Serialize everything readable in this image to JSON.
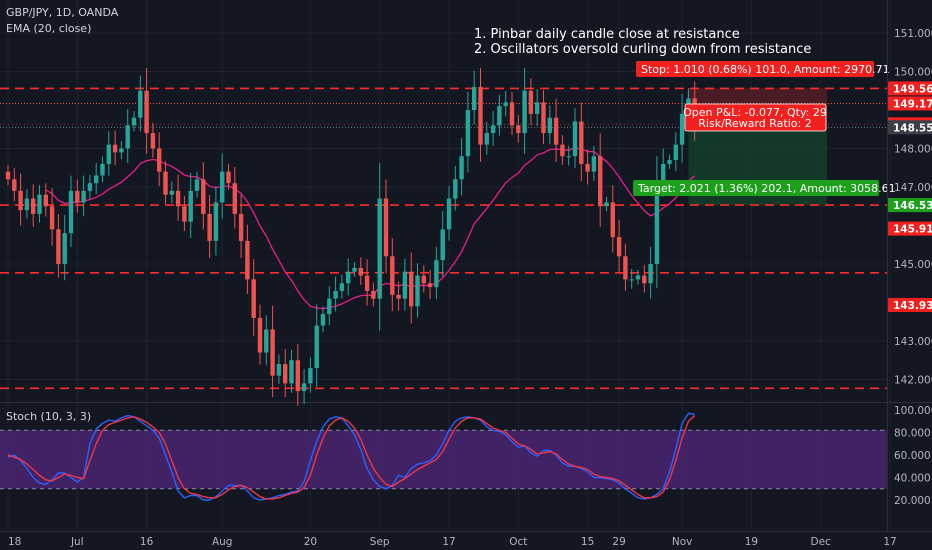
{
  "legend": {
    "symbol_line": "GBP/JPY, 1D, OANDA",
    "ema_line": "EMA (20, close)",
    "stoch_line": "Stoch (10, 3, 3)"
  },
  "annotations": [
    "1. Pinbar daily candle close at resistance",
    "2. Oscillators oversold curling down from resistance"
  ],
  "colors": {
    "background": "#131722",
    "bull": "#26a69a",
    "bear": "#ef5350",
    "ema": "#e91e8c",
    "stoch_k": "#2962ff",
    "stoch_d": "#f23645",
    "stoch_band": "#4a2470",
    "level_line": "#ff2b2b",
    "position_stop_zone": "#5c1f28",
    "position_target_zone": "#13412a",
    "label_red": "#f2201e",
    "label_green": "#1da11d",
    "label_dark": "#3d3f47"
  },
  "position": {
    "stop_label": "Stop: 1.010 (0.68%) 101.0, Amount: 2970.71",
    "pnl_label": "Open P&L: -0.077, Qty: 29",
    "rr_label": "Risk/Reward Ratio: 2",
    "target_label": "Target: 2.021 (1.36%) 202.1, Amount: 3058.61",
    "entry": 148.551,
    "stop": 149.561,
    "target": 146.53,
    "start_index": 108,
    "end_index": 130
  },
  "chart_data": [
    {
      "panel": "price",
      "type": "candlestick",
      "ylim": [
        141.4,
        151.8
      ],
      "y_ticks": [
        142.0,
        143.0,
        145.0,
        147.0,
        148.0,
        150.0,
        151.0
      ],
      "y_tick_labels": [
        "142.000",
        "143.000",
        "145.000",
        "147.000",
        "148.000",
        "150.000",
        "151.000"
      ],
      "price_labels": [
        {
          "value": 149.561,
          "text": "149.561",
          "style": "red"
        },
        {
          "value": 149.17,
          "text": "149.170",
          "style": "red"
        },
        {
          "value": 148.628,
          "text": "148.628",
          "style": "red"
        },
        {
          "value": 148.551,
          "text": "148.551",
          "style": "dark"
        },
        {
          "value": 146.53,
          "text": "146.530",
          "style": "green"
        },
        {
          "value": 145.919,
          "text": "145.919",
          "style": "red"
        },
        {
          "value": 143.936,
          "text": "143.936",
          "style": "red"
        }
      ],
      "levels": [
        149.56,
        146.53,
        144.77,
        141.77
      ],
      "x_ticks": [
        {
          "index": 0,
          "label": "18"
        },
        {
          "index": 11,
          "label": "Jul"
        },
        {
          "index": 22,
          "label": "16"
        },
        {
          "index": 34,
          "label": "Aug"
        },
        {
          "index": 48,
          "label": "20"
        },
        {
          "index": 59,
          "label": "Sep"
        },
        {
          "index": 70,
          "label": "17"
        },
        {
          "index": 81,
          "label": "Oct"
        },
        {
          "index": 92,
          "label": "15"
        },
        {
          "index": 97,
          "label": "29"
        },
        {
          "index": 107,
          "label": "Nov"
        },
        {
          "index": 118,
          "label": "19"
        },
        {
          "index": 129,
          "label": "Dec"
        },
        {
          "index": 140,
          "label": "17"
        }
      ],
      "close": [
        147.2,
        146.9,
        146.4,
        146.7,
        146.3,
        146.8,
        146.5,
        145.9,
        145.0,
        145.8,
        146.9,
        146.6,
        146.9,
        147.1,
        147.3,
        147.6,
        148.1,
        147.9,
        148.0,
        148.6,
        148.8,
        149.5,
        148.4,
        148.0,
        147.4,
        146.8,
        146.9,
        146.5,
        146.1,
        146.9,
        147.2,
        146.3,
        145.6,
        146.6,
        147.4,
        147.1,
        146.3,
        145.6,
        144.6,
        143.6,
        142.7,
        143.3,
        142.1,
        142.4,
        141.9,
        142.5,
        141.7,
        141.9,
        142.3,
        143.4,
        143.7,
        144.1,
        144.3,
        144.5,
        144.8,
        144.9,
        144.7,
        144.3,
        144.1,
        146.7,
        145.2,
        144.2,
        144.1,
        144.8,
        143.9,
        144.7,
        144.5,
        144.4,
        145.1,
        145.9,
        146.7,
        147.2,
        147.8,
        149.0,
        149.6,
        148.1,
        148.4,
        148.6,
        149.1,
        149.2,
        148.6,
        148.4,
        149.5,
        148.9,
        149.2,
        148.4,
        148.8,
        148.1,
        147.8,
        147.8,
        148.7,
        147.6,
        147.4,
        147.8,
        146.5,
        146.6,
        145.7,
        145.2,
        144.6,
        144.6,
        144.7,
        144.5,
        145.0,
        147.1,
        147.6,
        147.7,
        148.1,
        148.9,
        149.3,
        148.6
      ],
      "ema20_start_index": 20
    },
    {
      "panel": "oscillator",
      "type": "line",
      "ylim": [
        14,
        104
      ],
      "y_ticks": [
        20,
        40,
        60,
        80,
        100
      ],
      "y_tick_labels": [
        "20.000",
        "40.000",
        "60.000",
        "80.000",
        "100.000"
      ],
      "band": [
        30,
        82
      ],
      "series": [
        {
          "name": "%K",
          "values": [
            58.0,
            60.0,
            55.0,
            48.0,
            40.0,
            35.0,
            34.0,
            38.0,
            44.0,
            44.0,
            40.0,
            36.0,
            40.0,
            70.0,
            83.0,
            88.0,
            91.0,
            90.0,
            93.0,
            95.0,
            94.0,
            90.0,
            86.0,
            82.0,
            75.0,
            60.0,
            45.0,
            28.0,
            22.0,
            24.0,
            24.0,
            20.0,
            20.0,
            23.0,
            28.0,
            33.0,
            33.0,
            33.0,
            28.0,
            22.0,
            20.0,
            21.0,
            22.0,
            24.0,
            25.0,
            27.0,
            28.0,
            36.0,
            55.0,
            72.0,
            85.0,
            92.0,
            94.0,
            93.0,
            86.0,
            78.0,
            65.0,
            48.0,
            38.0,
            32.0,
            30.0,
            33.0,
            42.0,
            40.0,
            48.0,
            52.0,
            53.0,
            55.0,
            60.0,
            70.0,
            82.0,
            90.0,
            93.0,
            94.0,
            93.0,
            91.0,
            85.0,
            82.0,
            81.0,
            78.0,
            72.0,
            67.0,
            68.0,
            62.0,
            59.0,
            64.0,
            64.0,
            60.0,
            53.0,
            50.0,
            50.0,
            48.0,
            45.0,
            40.0,
            40.0,
            39.0,
            38.0,
            35.0,
            30.0,
            26.0,
            22.0,
            21.0,
            22.0,
            25.0,
            30.0,
            45.0,
            65.0,
            88.0,
            97.0,
            96.0
          ]
        },
        {
          "name": "%D",
          "values": [
            60.0,
            58.0,
            56.0,
            52.0,
            47.0,
            42.0,
            38.0,
            37.0,
            40.0,
            43.0,
            42.0,
            40.0,
            39.0,
            55.0,
            70.0,
            82.0,
            87.0,
            89.0,
            91.0,
            93.0,
            94.0,
            92.0,
            89.0,
            85.0,
            80.0,
            70.0,
            55.0,
            40.0,
            30.0,
            26.0,
            25.0,
            23.0,
            22.0,
            22.0,
            25.0,
            29.0,
            32.0,
            33.0,
            31.0,
            27.0,
            23.0,
            21.0,
            21.0,
            22.0,
            24.0,
            26.0,
            27.0,
            31.0,
            42.0,
            60.0,
            75.0,
            86.0,
            91.0,
            93.0,
            90.0,
            84.0,
            74.0,
            60.0,
            48.0,
            40.0,
            34.0,
            32.0,
            36.0,
            39.0,
            43.0,
            47.0,
            50.0,
            53.0,
            56.0,
            63.0,
            74.0,
            84.0,
            90.0,
            93.0,
            93.0,
            92.0,
            88.0,
            84.0,
            82.0,
            80.0,
            75.0,
            70.0,
            68.0,
            65.0,
            61.0,
            62.0,
            63.0,
            61.0,
            56.0,
            52.0,
            50.0,
            49.0,
            47.0,
            43.0,
            41.0,
            40.0,
            39.0,
            37.0,
            33.0,
            29.0,
            25.0,
            22.0,
            22.0,
            23.0,
            27.0,
            38.0,
            55.0,
            75.0,
            90.0,
            95.0
          ]
        }
      ]
    }
  ]
}
